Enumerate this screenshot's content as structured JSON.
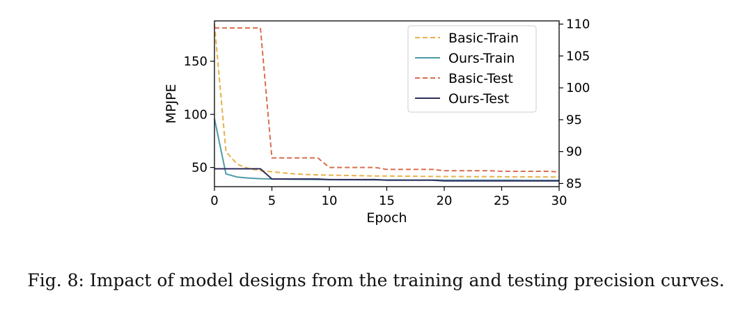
{
  "caption": "Fig. 8: Impact of model designs from the training and testing precision curves.",
  "chart_data": {
    "type": "line",
    "xlabel": "Epoch",
    "ylabel": "MPJPE",
    "xlim": [
      0,
      30
    ],
    "ylim_left": [
      32,
      188
    ],
    "ylim_right": [
      84.5,
      110.5
    ],
    "x_ticks": [
      0,
      5,
      10,
      15,
      20,
      25,
      30
    ],
    "y_ticks_left": [
      50,
      100,
      150
    ],
    "y_ticks_right": [
      85,
      90,
      95,
      100,
      105,
      110
    ],
    "legend_position": "top-right",
    "grid": false,
    "series": [
      {
        "name": "Basic-Train",
        "axis": "left",
        "color": "#e8b04a",
        "dash": true,
        "x": [
          0,
          1,
          2,
          3,
          4,
          5,
          6,
          7,
          8,
          9,
          10,
          11,
          12,
          13,
          14,
          15,
          16,
          17,
          18,
          19,
          20,
          21,
          22,
          23,
          24,
          25,
          26,
          27,
          28,
          29,
          30
        ],
        "y": [
          185,
          65,
          53,
          49,
          47,
          46,
          45,
          44,
          43.5,
          43,
          42.8,
          42.6,
          42.4,
          42.2,
          42,
          42,
          41.9,
          41.8,
          41.7,
          41.6,
          41.5,
          41.5,
          41.4,
          41.4,
          41.3,
          41.3,
          41.2,
          41.2,
          41.1,
          41.1,
          41
        ]
      },
      {
        "name": "Ours-Train",
        "axis": "left",
        "color": "#4e9aa8",
        "dash": false,
        "x": [
          0,
          1,
          2,
          3,
          4,
          5,
          6,
          7,
          8,
          9,
          10,
          11,
          12,
          13,
          14,
          15,
          16,
          17,
          18,
          19,
          20,
          21,
          22,
          23,
          24,
          25,
          26,
          27,
          28,
          29,
          30
        ],
        "y": [
          96,
          44,
          41,
          40,
          39.5,
          39.2,
          39,
          38.9,
          38.8,
          38.7,
          38.6,
          38.5,
          38.5,
          38.4,
          38.4,
          38.3,
          38.3,
          38.2,
          38.2,
          38.2,
          38.1,
          38.1,
          38.1,
          38,
          38,
          38,
          38,
          37.9,
          37.9,
          37.9,
          37.9
        ]
      },
      {
        "name": "Basic-Test",
        "axis": "right",
        "color": "#d96e4e",
        "dash": true,
        "x": [
          0,
          1,
          2,
          3,
          4,
          5,
          6,
          7,
          8,
          9,
          10,
          11,
          12,
          13,
          14,
          15,
          16,
          17,
          18,
          19,
          20,
          21,
          22,
          23,
          24,
          25,
          26,
          27,
          28,
          29,
          30
        ],
        "y": [
          109.4,
          109.4,
          109.4,
          109.4,
          109.4,
          89,
          89,
          89,
          89,
          89,
          87.5,
          87.5,
          87.5,
          87.5,
          87.5,
          87.2,
          87.2,
          87.2,
          87.2,
          87.2,
          87,
          87,
          87,
          87,
          87,
          86.9,
          86.9,
          86.9,
          86.9,
          86.9,
          86.8
        ]
      },
      {
        "name": "Ours-Test",
        "axis": "right",
        "color": "#2e2e5c",
        "dash": false,
        "x": [
          0,
          1,
          2,
          3,
          4,
          5,
          6,
          7,
          8,
          9,
          10,
          11,
          12,
          13,
          14,
          15,
          16,
          17,
          18,
          19,
          20,
          21,
          22,
          23,
          24,
          25,
          26,
          27,
          28,
          29,
          30
        ],
        "y": [
          87.3,
          87.3,
          87.3,
          87.3,
          87.3,
          85.7,
          85.7,
          85.7,
          85.7,
          85.7,
          85.6,
          85.6,
          85.6,
          85.6,
          85.6,
          85.5,
          85.5,
          85.5,
          85.5,
          85.5,
          85.4,
          85.4,
          85.4,
          85.4,
          85.4,
          85.4,
          85.4,
          85.4,
          85.4,
          85.4,
          85.4
        ]
      }
    ]
  }
}
